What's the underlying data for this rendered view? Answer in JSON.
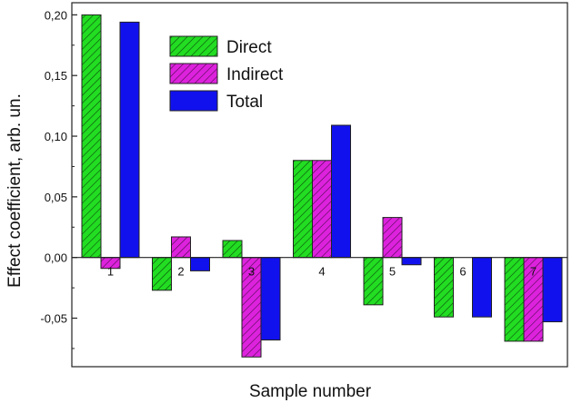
{
  "chart_data": {
    "type": "bar",
    "categories": [
      "1",
      "2",
      "3",
      "4",
      "5",
      "6",
      "7"
    ],
    "series": [
      {
        "name": "Direct",
        "color": "#22dd22",
        "hatch": true,
        "values": [
          0.2,
          -0.027,
          0.014,
          0.08,
          -0.039,
          -0.049,
          -0.069
        ]
      },
      {
        "name": "Indirect",
        "color": "#dd22dd",
        "hatch": true,
        "values": [
          -0.009,
          0.017,
          -0.082,
          0.08,
          0.033,
          0.0,
          -0.069
        ]
      },
      {
        "name": "Total",
        "color": "#1111ee",
        "hatch": false,
        "values": [
          0.194,
          -0.011,
          -0.068,
          0.109,
          -0.006,
          -0.049,
          -0.053
        ]
      }
    ],
    "xlabel": "Sample number",
    "ylabel": "Effect coefficient, arb. un.",
    "ylim": [
      -0.09,
      0.21
    ],
    "yticks": [
      0.2,
      0.15,
      0.1,
      0.05,
      0.0,
      -0.05
    ],
    "ytick_labels": [
      "0,20",
      "0,15",
      "0,10",
      "0,05",
      "0,00",
      "-0,05"
    ],
    "legend_position": "top-center",
    "grid": false
  }
}
